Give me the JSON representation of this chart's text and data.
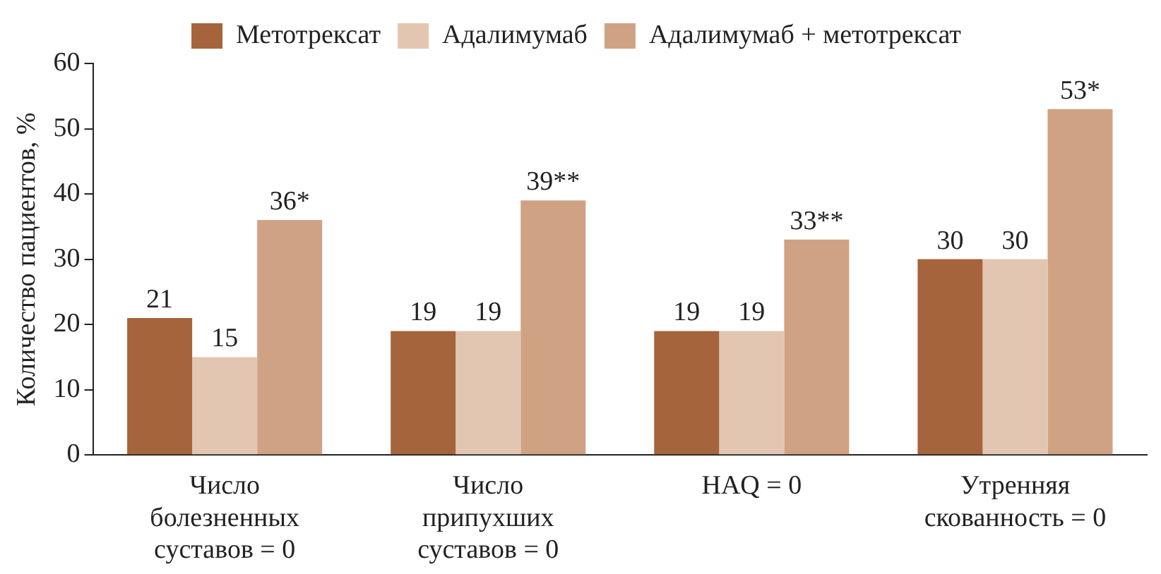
{
  "chart_data": {
    "type": "bar",
    "ylabel": "Количество пациентов, %",
    "categories": [
      "Число\nболезненных\nсуставов = 0",
      "Число\nприпухших\nсуставов = 0",
      "HAQ = 0",
      "Утренняя\nскованность = 0"
    ],
    "series": [
      {
        "name": "Метотрексат",
        "color": "#a5643c",
        "values": [
          21,
          19,
          19,
          30
        ],
        "value_labels": [
          "21",
          "19",
          "19",
          "30"
        ]
      },
      {
        "name": "Адалимумаб",
        "color": "#e3c6b2",
        "values": [
          15,
          19,
          19,
          30
        ],
        "value_labels": [
          "15",
          "19",
          "19",
          "30"
        ]
      },
      {
        "name": "Адалимумаб + метотрексат",
        "color": "#d0a284",
        "values": [
          36,
          39,
          33,
          53
        ],
        "value_labels": [
          "36*",
          "39**",
          "33**",
          "53*"
        ]
      }
    ],
    "ylim": [
      0,
      60
    ],
    "yticks": [
      0,
      10,
      20,
      30,
      40,
      50,
      60
    ],
    "grid": false,
    "legend": "top"
  }
}
